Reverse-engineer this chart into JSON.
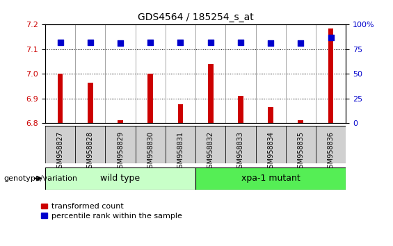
{
  "title": "GDS4564 / 185254_s_at",
  "samples": [
    "GSM958827",
    "GSM958828",
    "GSM958829",
    "GSM958830",
    "GSM958831",
    "GSM958832",
    "GSM958833",
    "GSM958834",
    "GSM958835",
    "GSM958836"
  ],
  "transformed_count": [
    7.0,
    6.965,
    6.81,
    7.0,
    6.875,
    7.04,
    6.91,
    6.865,
    6.81,
    7.185
  ],
  "percentile_rank": [
    82,
    82,
    81,
    82,
    82,
    82,
    82,
    81,
    81,
    87
  ],
  "ylim_left": [
    6.8,
    7.2
  ],
  "ylim_right": [
    0,
    100
  ],
  "yticks_left": [
    6.8,
    6.9,
    7.0,
    7.1,
    7.2
  ],
  "yticks_right": [
    0,
    25,
    50,
    75,
    100
  ],
  "groups": [
    {
      "label": "wild type",
      "start": 0,
      "end": 4,
      "color": "#c8ffc8"
    },
    {
      "label": "xpa-1 mutant",
      "start": 5,
      "end": 9,
      "color": "#55ee55"
    }
  ],
  "group_label": "genotype/variation",
  "bar_color": "#cc0000",
  "dot_color": "#0000cc",
  "bar_width": 0.18,
  "dot_size": 40,
  "grid_color": "#000000",
  "tick_label_color_left": "#cc0000",
  "tick_label_color_right": "#0000cc",
  "legend_items": [
    {
      "color": "#cc0000",
      "label": "transformed count"
    },
    {
      "color": "#0000cc",
      "label": "percentile rank within the sample"
    }
  ],
  "background_color": "#ffffff",
  "plot_bg": "#ffffff",
  "xlabel_bg": "#d0d0d0"
}
